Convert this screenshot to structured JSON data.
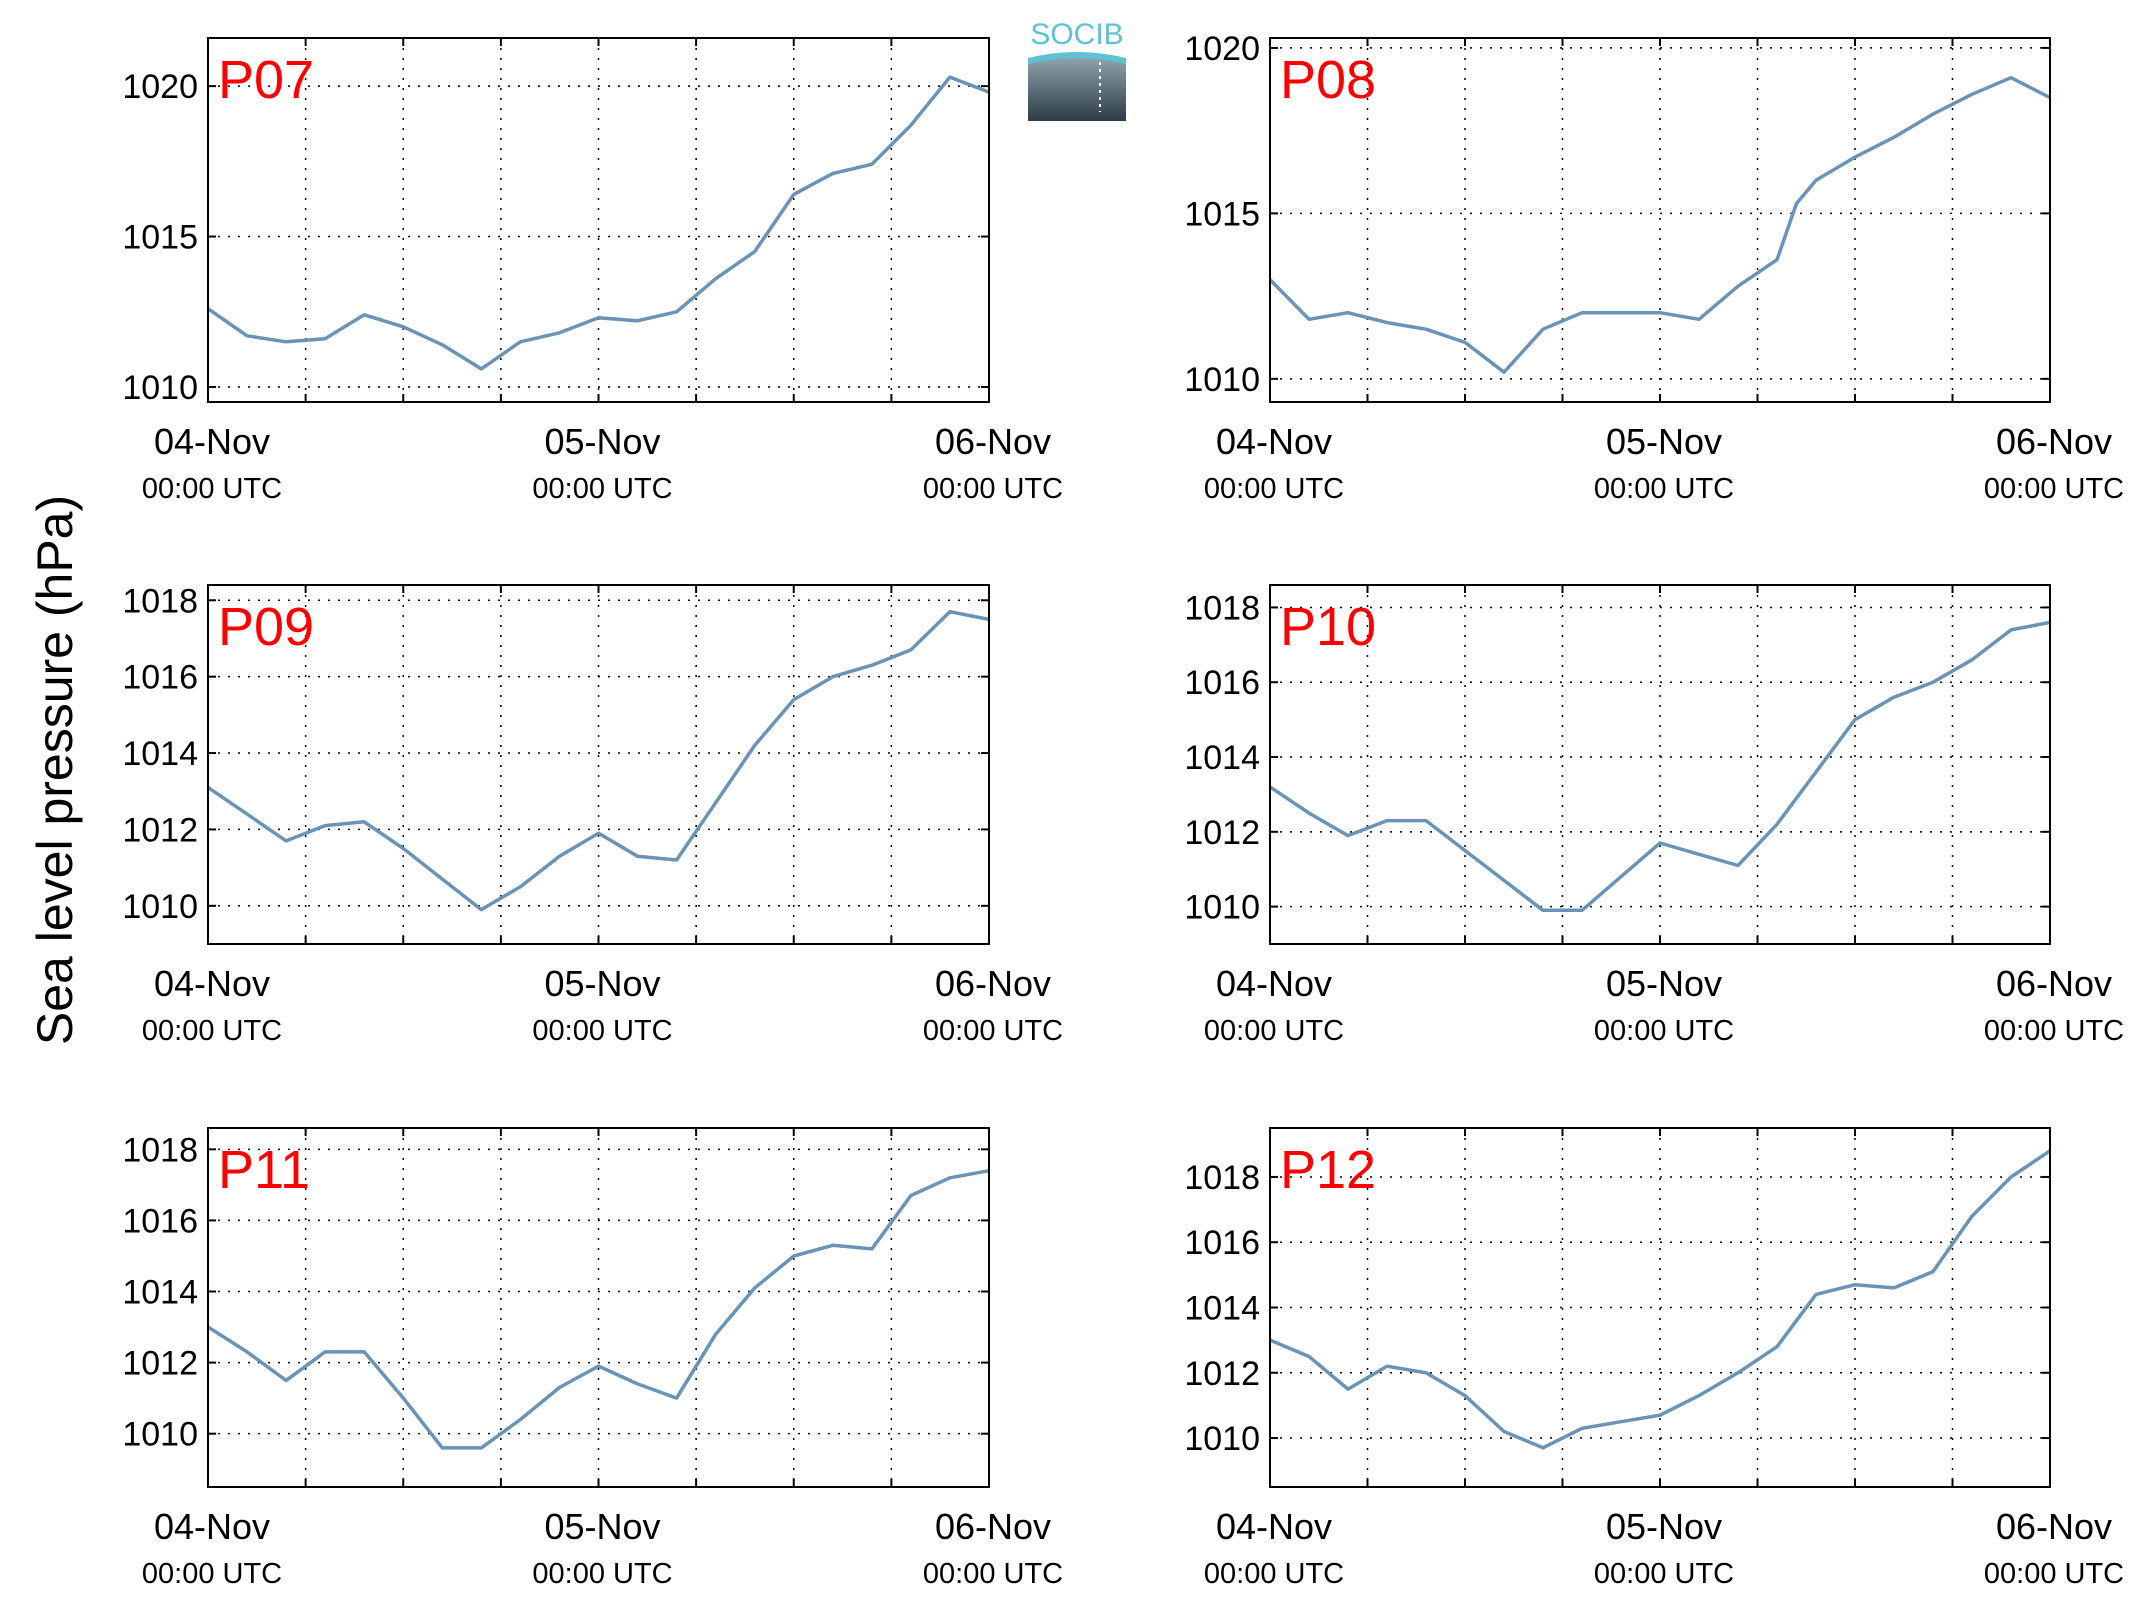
{
  "ylabel": "Sea level pressure (hPa)",
  "logo": {
    "text": "SOCIB"
  },
  "colors": {
    "line": "#6a93b8",
    "panel_label": "#ff0000",
    "axis": "#000000"
  },
  "x_ticks": [
    {
      "day": "04-Nov",
      "time": "00:00 UTC"
    },
    {
      "day": "05-Nov",
      "time": "00:00 UTC"
    },
    {
      "day": "06-Nov",
      "time": "00:00 UTC"
    }
  ],
  "chart_data": [
    {
      "type": "line",
      "title": "P07",
      "ylim": [
        1009.5,
        1021.6
      ],
      "yticks": [
        1010,
        1015,
        1020
      ],
      "grid": true,
      "x": [
        0,
        0.1,
        0.2,
        0.3,
        0.4,
        0.5,
        0.6,
        0.7,
        0.8,
        0.9,
        1.0,
        1.1,
        1.2,
        1.3,
        1.4,
        1.5,
        1.6,
        1.7,
        1.8,
        1.9,
        2.0
      ],
      "y": [
        1012.6,
        1011.7,
        1011.5,
        1011.6,
        1012.4,
        1012.0,
        1011.4,
        1010.6,
        1011.5,
        1011.8,
        1012.3,
        1012.2,
        1012.5,
        1013.6,
        1014.5,
        1016.4,
        1017.1,
        1017.4,
        1018.7,
        1020.3,
        1019.8
      ]
    },
    {
      "type": "line",
      "title": "P08",
      "ylim": [
        1009.3,
        1020.3
      ],
      "yticks": [
        1010,
        1015,
        1020
      ],
      "grid": true,
      "x": [
        0,
        0.1,
        0.2,
        0.3,
        0.4,
        0.5,
        0.6,
        0.7,
        0.8,
        0.9,
        1.0,
        1.1,
        1.2,
        1.3,
        1.35,
        1.4,
        1.5,
        1.6,
        1.7,
        1.8,
        1.9,
        2.0
      ],
      "y": [
        1013.0,
        1011.8,
        1012.0,
        1011.7,
        1011.5,
        1011.1,
        1010.2,
        1011.5,
        1012.0,
        1012.0,
        1012.0,
        1011.8,
        1012.8,
        1013.6,
        1015.3,
        1016.0,
        1016.7,
        1017.3,
        1018.0,
        1018.6,
        1019.1,
        1018.5
      ]
    },
    {
      "type": "line",
      "title": "P09",
      "ylim": [
        1009.0,
        1018.4
      ],
      "yticks": [
        1010,
        1012,
        1014,
        1016,
        1018
      ],
      "grid": true,
      "x": [
        0,
        0.1,
        0.2,
        0.3,
        0.4,
        0.5,
        0.6,
        0.7,
        0.8,
        0.9,
        1.0,
        1.1,
        1.2,
        1.3,
        1.4,
        1.5,
        1.6,
        1.7,
        1.8,
        1.9,
        2.0
      ],
      "y": [
        1013.1,
        1012.4,
        1011.7,
        1012.1,
        1012.2,
        1011.5,
        1010.7,
        1009.9,
        1010.5,
        1011.3,
        1011.9,
        1011.3,
        1011.2,
        1012.7,
        1014.2,
        1015.4,
        1016.0,
        1016.3,
        1016.7,
        1017.7,
        1017.5
      ]
    },
    {
      "type": "line",
      "title": "P10",
      "ylim": [
        1009.0,
        1018.6
      ],
      "yticks": [
        1010,
        1012,
        1014,
        1016,
        1018
      ],
      "grid": true,
      "x": [
        0,
        0.1,
        0.2,
        0.3,
        0.4,
        0.5,
        0.6,
        0.7,
        0.8,
        0.9,
        1.0,
        1.1,
        1.2,
        1.3,
        1.4,
        1.5,
        1.6,
        1.7,
        1.8,
        1.9,
        2.0
      ],
      "y": [
        1013.2,
        1012.5,
        1011.9,
        1012.3,
        1012.3,
        1011.5,
        1010.7,
        1009.9,
        1009.9,
        1010.8,
        1011.7,
        1011.4,
        1011.1,
        1012.2,
        1013.6,
        1015.0,
        1015.6,
        1016.0,
        1016.6,
        1017.4,
        1017.6
      ]
    },
    {
      "type": "line",
      "title": "P11",
      "ylim": [
        1008.5,
        1018.6
      ],
      "yticks": [
        1010,
        1012,
        1014,
        1016,
        1018
      ],
      "grid": true,
      "x": [
        0,
        0.1,
        0.2,
        0.3,
        0.4,
        0.5,
        0.6,
        0.7,
        0.8,
        0.9,
        1.0,
        1.1,
        1.2,
        1.3,
        1.4,
        1.5,
        1.6,
        1.7,
        1.8,
        1.9,
        2.0
      ],
      "y": [
        1013.0,
        1012.3,
        1011.5,
        1012.3,
        1012.3,
        1011.0,
        1009.6,
        1009.6,
        1010.4,
        1011.3,
        1011.9,
        1011.4,
        1011.0,
        1012.8,
        1014.1,
        1015.0,
        1015.3,
        1015.2,
        1016.7,
        1017.2,
        1017.4
      ]
    },
    {
      "type": "line",
      "title": "P12",
      "ylim": [
        1008.5,
        1019.5
      ],
      "yticks": [
        1010,
        1012,
        1014,
        1016,
        1018
      ],
      "grid": true,
      "x": [
        0,
        0.1,
        0.2,
        0.3,
        0.4,
        0.5,
        0.6,
        0.7,
        0.8,
        0.9,
        1.0,
        1.1,
        1.2,
        1.3,
        1.4,
        1.5,
        1.6,
        1.7,
        1.8,
        1.9,
        2.0
      ],
      "y": [
        1013.0,
        1012.5,
        1011.5,
        1012.2,
        1012.0,
        1011.3,
        1010.2,
        1009.7,
        1010.3,
        1010.5,
        1010.7,
        1011.3,
        1012.0,
        1012.8,
        1014.4,
        1014.7,
        1014.6,
        1015.1,
        1016.8,
        1018.0,
        1018.8
      ]
    }
  ]
}
